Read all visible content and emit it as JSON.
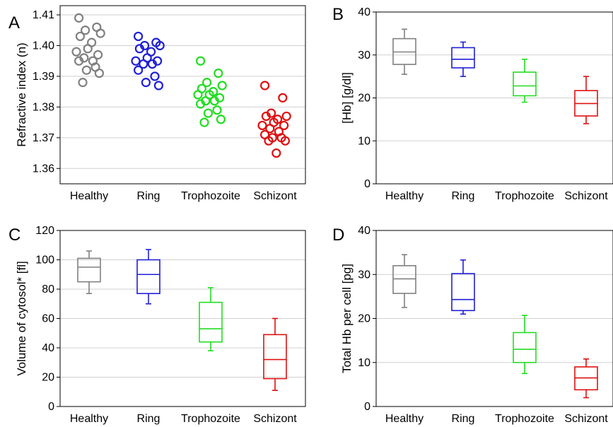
{
  "chart_data": [
    {
      "panel": "A",
      "type": "scatter",
      "categories": [
        "Healthy",
        "Ring",
        "Trophozoite",
        "Schizont"
      ],
      "ylabel": "Refractive index (n)",
      "ylim": [
        1.355,
        1.413
      ],
      "yticks": [
        "1.36",
        "1.37",
        "1.38",
        "1.39",
        "1.40",
        "1.41"
      ],
      "grid": true,
      "series": [
        {
          "color": "#808080",
          "values": [
            1.409,
            1.406,
            1.405,
            1.404,
            1.403,
            1.401,
            1.399,
            1.398,
            1.397,
            1.396,
            1.395,
            1.395,
            1.393,
            1.392,
            1.391,
            1.388
          ]
        },
        {
          "color": "#1f1fd6",
          "values": [
            1.403,
            1.401,
            1.4,
            1.4,
            1.399,
            1.398,
            1.396,
            1.395,
            1.395,
            1.394,
            1.394,
            1.392,
            1.39,
            1.388,
            1.387
          ]
        },
        {
          "color": "#22dd22",
          "values": [
            1.395,
            1.391,
            1.388,
            1.387,
            1.386,
            1.385,
            1.384,
            1.384,
            1.383,
            1.382,
            1.382,
            1.381,
            1.379,
            1.378,
            1.376,
            1.375
          ]
        },
        {
          "color": "#e01010",
          "values": [
            1.387,
            1.383,
            1.378,
            1.377,
            1.377,
            1.376,
            1.375,
            1.374,
            1.374,
            1.373,
            1.372,
            1.371,
            1.37,
            1.37,
            1.369,
            1.369,
            1.365
          ]
        }
      ]
    },
    {
      "panel": "B",
      "type": "box",
      "categories": [
        "Healthy",
        "Ring",
        "Trophozoite",
        "Schizont"
      ],
      "ylabel": "[Hb]  [g/dl]",
      "ylim": [
        0,
        40
      ],
      "yticks": [
        "0",
        "10",
        "20",
        "30",
        "40"
      ],
      "grid": true,
      "boxes": [
        {
          "color": "#808080",
          "min": 25.5,
          "q1": 27.8,
          "median": 30.7,
          "q3": 33.8,
          "max": 36.0
        },
        {
          "color": "#1f1fd6",
          "min": 25.0,
          "q1": 27.0,
          "median": 29.0,
          "q3": 31.7,
          "max": 33.0
        },
        {
          "color": "#22dd22",
          "min": 19.0,
          "q1": 20.5,
          "median": 22.8,
          "q3": 26.0,
          "max": 29.0
        },
        {
          "color": "#e01010",
          "min": 14.0,
          "q1": 15.8,
          "median": 18.7,
          "q3": 21.7,
          "max": 25.0
        }
      ]
    },
    {
      "panel": "C",
      "type": "box",
      "categories": [
        "Healthy",
        "Ring",
        "Trophozoite",
        "Schizont"
      ],
      "ylabel": "Volume of cytosol* [fl]",
      "ylim": [
        0,
        120
      ],
      "yticks": [
        "0",
        "20",
        "40",
        "60",
        "80",
        "100",
        "120"
      ],
      "grid": true,
      "boxes": [
        {
          "color": "#808080",
          "min": 77,
          "q1": 85,
          "median": 95,
          "q3": 101,
          "max": 106
        },
        {
          "color": "#1f1fd6",
          "min": 70,
          "q1": 77,
          "median": 90,
          "q3": 100,
          "max": 107
        },
        {
          "color": "#22dd22",
          "min": 38,
          "q1": 44,
          "median": 53,
          "q3": 71,
          "max": 81
        },
        {
          "color": "#e01010",
          "min": 11,
          "q1": 19,
          "median": 32,
          "q3": 49,
          "max": 60
        }
      ]
    },
    {
      "panel": "D",
      "type": "box",
      "categories": [
        "Healthy",
        "Ring",
        "Trophozoite",
        "Schizont"
      ],
      "ylabel": "Total Hb per cell [pg]",
      "ylim": [
        0,
        40
      ],
      "yticks": [
        "0",
        "10",
        "20",
        "30",
        "40"
      ],
      "grid": true,
      "boxes": [
        {
          "color": "#808080",
          "min": 22.5,
          "q1": 25.7,
          "median": 29.0,
          "q3": 32.0,
          "max": 34.5
        },
        {
          "color": "#1f1fd6",
          "min": 21.0,
          "q1": 21.8,
          "median": 24.3,
          "q3": 30.2,
          "max": 33.3
        },
        {
          "color": "#22dd22",
          "min": 7.5,
          "q1": 10.0,
          "median": 13.0,
          "q3": 16.8,
          "max": 20.7
        },
        {
          "color": "#e01010",
          "min": 2.0,
          "q1": 3.8,
          "median": 6.5,
          "q3": 9.0,
          "max": 10.8
        }
      ]
    }
  ]
}
